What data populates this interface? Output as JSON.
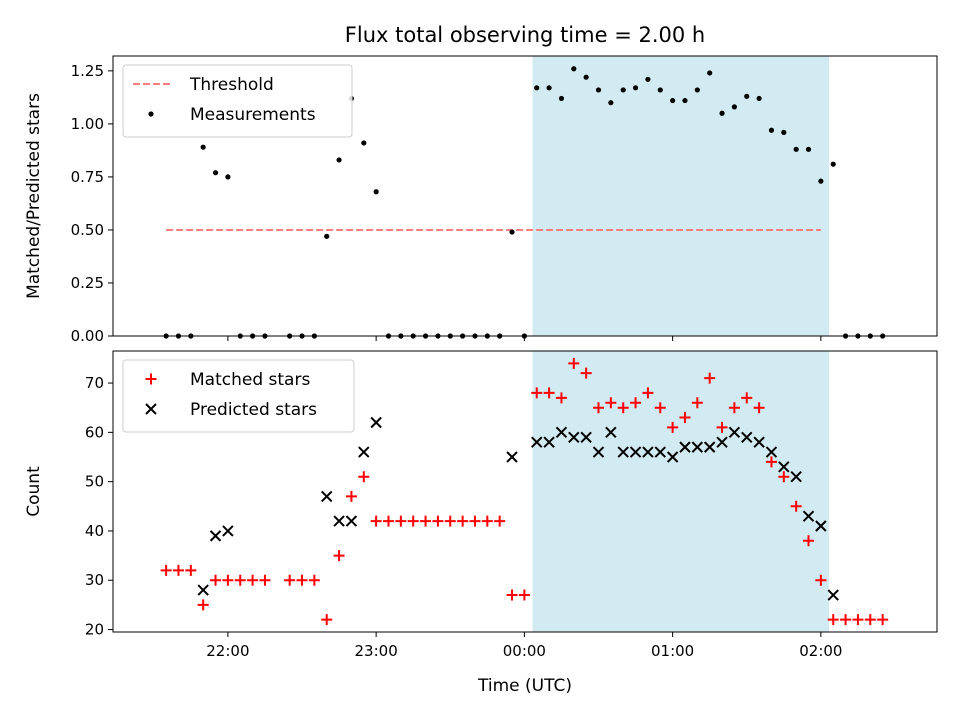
{
  "chart_data": {
    "title": "Flux total observing time = 2.00 h",
    "xlabel": "Time (UTC)",
    "x_unit": "minutes after 21:00 UTC",
    "x_ticks": [
      {
        "minute": 60,
        "label": "22:00"
      },
      {
        "minute": 120,
        "label": "23:00"
      },
      {
        "minute": 180,
        "label": "00:00"
      },
      {
        "minute": 240,
        "label": "01:00"
      },
      {
        "minute": 300,
        "label": "02:00"
      }
    ],
    "shaded_interval": {
      "start_minute": 183.3,
      "end_minute": 303.3,
      "color": "#add8e6"
    },
    "panels": [
      {
        "type": "scatter",
        "ylabel": "Matched/Predicted stars",
        "ylim": [
          0,
          1.32
        ],
        "yticks": [
          "0.00",
          "0.25",
          "0.50",
          "0.75",
          "1.00",
          "1.25"
        ],
        "legend_position": "top-left",
        "threshold": {
          "name": "Threshold",
          "value": 0.5,
          "x_start": 35,
          "x_end": 300,
          "color": "#ff7f7f"
        },
        "series": [
          {
            "name": "Measurements",
            "marker": "dot",
            "color": "#000000",
            "points": [
              [
                35,
                0
              ],
              [
                40,
                0
              ],
              [
                45,
                0
              ],
              [
                50,
                0.89
              ],
              [
                55,
                0.77
              ],
              [
                60,
                0.75
              ],
              [
                65,
                0
              ],
              [
                70,
                0
              ],
              [
                75,
                0
              ],
              [
                85,
                0
              ],
              [
                90,
                0
              ],
              [
                95,
                0
              ],
              [
                100,
                0.47
              ],
              [
                105,
                0.83
              ],
              [
                110,
                1.12
              ],
              [
                115,
                0.91
              ],
              [
                120,
                0.68
              ],
              [
                125,
                0
              ],
              [
                130,
                0
              ],
              [
                135,
                0
              ],
              [
                140,
                0
              ],
              [
                145,
                0
              ],
              [
                150,
                0
              ],
              [
                155,
                0
              ],
              [
                160,
                0
              ],
              [
                165,
                0
              ],
              [
                170,
                0
              ],
              [
                175,
                0.49
              ],
              [
                180,
                0
              ],
              [
                185,
                1.17
              ],
              [
                190,
                1.17
              ],
              [
                195,
                1.12
              ],
              [
                200,
                1.26
              ],
              [
                205,
                1.22
              ],
              [
                210,
                1.16
              ],
              [
                215,
                1.1
              ],
              [
                220,
                1.16
              ],
              [
                225,
                1.17
              ],
              [
                230,
                1.21
              ],
              [
                235,
                1.16
              ],
              [
                240,
                1.11
              ],
              [
                245,
                1.11
              ],
              [
                250,
                1.16
              ],
              [
                255,
                1.24
              ],
              [
                260,
                1.05
              ],
              [
                265,
                1.08
              ],
              [
                270,
                1.13
              ],
              [
                275,
                1.12
              ],
              [
                280,
                0.97
              ],
              [
                285,
                0.96
              ],
              [
                290,
                0.88
              ],
              [
                295,
                0.88
              ],
              [
                300,
                0.73
              ],
              [
                305,
                0.81
              ],
              [
                310,
                0
              ],
              [
                315,
                0
              ],
              [
                320,
                0
              ],
              [
                325,
                0
              ]
            ]
          }
        ]
      },
      {
        "type": "scatter",
        "ylabel": "Count",
        "ylim": [
          19.5,
          76.5
        ],
        "yticks": [
          "20",
          "30",
          "40",
          "50",
          "60",
          "70"
        ],
        "legend_position": "top-left",
        "series": [
          {
            "name": "Matched stars",
            "marker": "plus",
            "color": "#ff0000",
            "points": [
              [
                35,
                32
              ],
              [
                40,
                32
              ],
              [
                45,
                32
              ],
              [
                50,
                25
              ],
              [
                55,
                30
              ],
              [
                60,
                30
              ],
              [
                65,
                30
              ],
              [
                70,
                30
              ],
              [
                75,
                30
              ],
              [
                85,
                30
              ],
              [
                90,
                30
              ],
              [
                95,
                30
              ],
              [
                100,
                22
              ],
              [
                105,
                35
              ],
              [
                110,
                47
              ],
              [
                115,
                51
              ],
              [
                120,
                42
              ],
              [
                125,
                42
              ],
              [
                130,
                42
              ],
              [
                135,
                42
              ],
              [
                140,
                42
              ],
              [
                145,
                42
              ],
              [
                150,
                42
              ],
              [
                155,
                42
              ],
              [
                160,
                42
              ],
              [
                165,
                42
              ],
              [
                170,
                42
              ],
              [
                175,
                27
              ],
              [
                180,
                27
              ],
              [
                185,
                68
              ],
              [
                190,
                68
              ],
              [
                195,
                67
              ],
              [
                200,
                74
              ],
              [
                205,
                72
              ],
              [
                210,
                65
              ],
              [
                215,
                66
              ],
              [
                220,
                65
              ],
              [
                225,
                66
              ],
              [
                230,
                68
              ],
              [
                235,
                65
              ],
              [
                240,
                61
              ],
              [
                245,
                63
              ],
              [
                250,
                66
              ],
              [
                255,
                71
              ],
              [
                260,
                61
              ],
              [
                265,
                65
              ],
              [
                270,
                67
              ],
              [
                275,
                65
              ],
              [
                280,
                54
              ],
              [
                285,
                51
              ],
              [
                290,
                45
              ],
              [
                295,
                38
              ],
              [
                300,
                30
              ],
              [
                305,
                22
              ],
              [
                310,
                22
              ],
              [
                315,
                22
              ],
              [
                320,
                22
              ],
              [
                325,
                22
              ]
            ]
          },
          {
            "name": "Predicted stars",
            "marker": "x",
            "color": "#000000",
            "points": [
              [
                50,
                28
              ],
              [
                55,
                39
              ],
              [
                60,
                40
              ],
              [
                100,
                47
              ],
              [
                105,
                42
              ],
              [
                110,
                42
              ],
              [
                115,
                56
              ],
              [
                120,
                62
              ],
              [
                175,
                55
              ],
              [
                185,
                58
              ],
              [
                190,
                58
              ],
              [
                195,
                60
              ],
              [
                200,
                59
              ],
              [
                205,
                59
              ],
              [
                210,
                56
              ],
              [
                215,
                60
              ],
              [
                220,
                56
              ],
              [
                225,
                56
              ],
              [
                230,
                56
              ],
              [
                235,
                56
              ],
              [
                240,
                55
              ],
              [
                245,
                57
              ],
              [
                250,
                57
              ],
              [
                255,
                57
              ],
              [
                260,
                58
              ],
              [
                265,
                60
              ],
              [
                270,
                59
              ],
              [
                275,
                58
              ],
              [
                280,
                56
              ],
              [
                285,
                53
              ],
              [
                290,
                51
              ],
              [
                295,
                43
              ],
              [
                300,
                41
              ],
              [
                305,
                27
              ]
            ]
          }
        ]
      }
    ]
  }
}
